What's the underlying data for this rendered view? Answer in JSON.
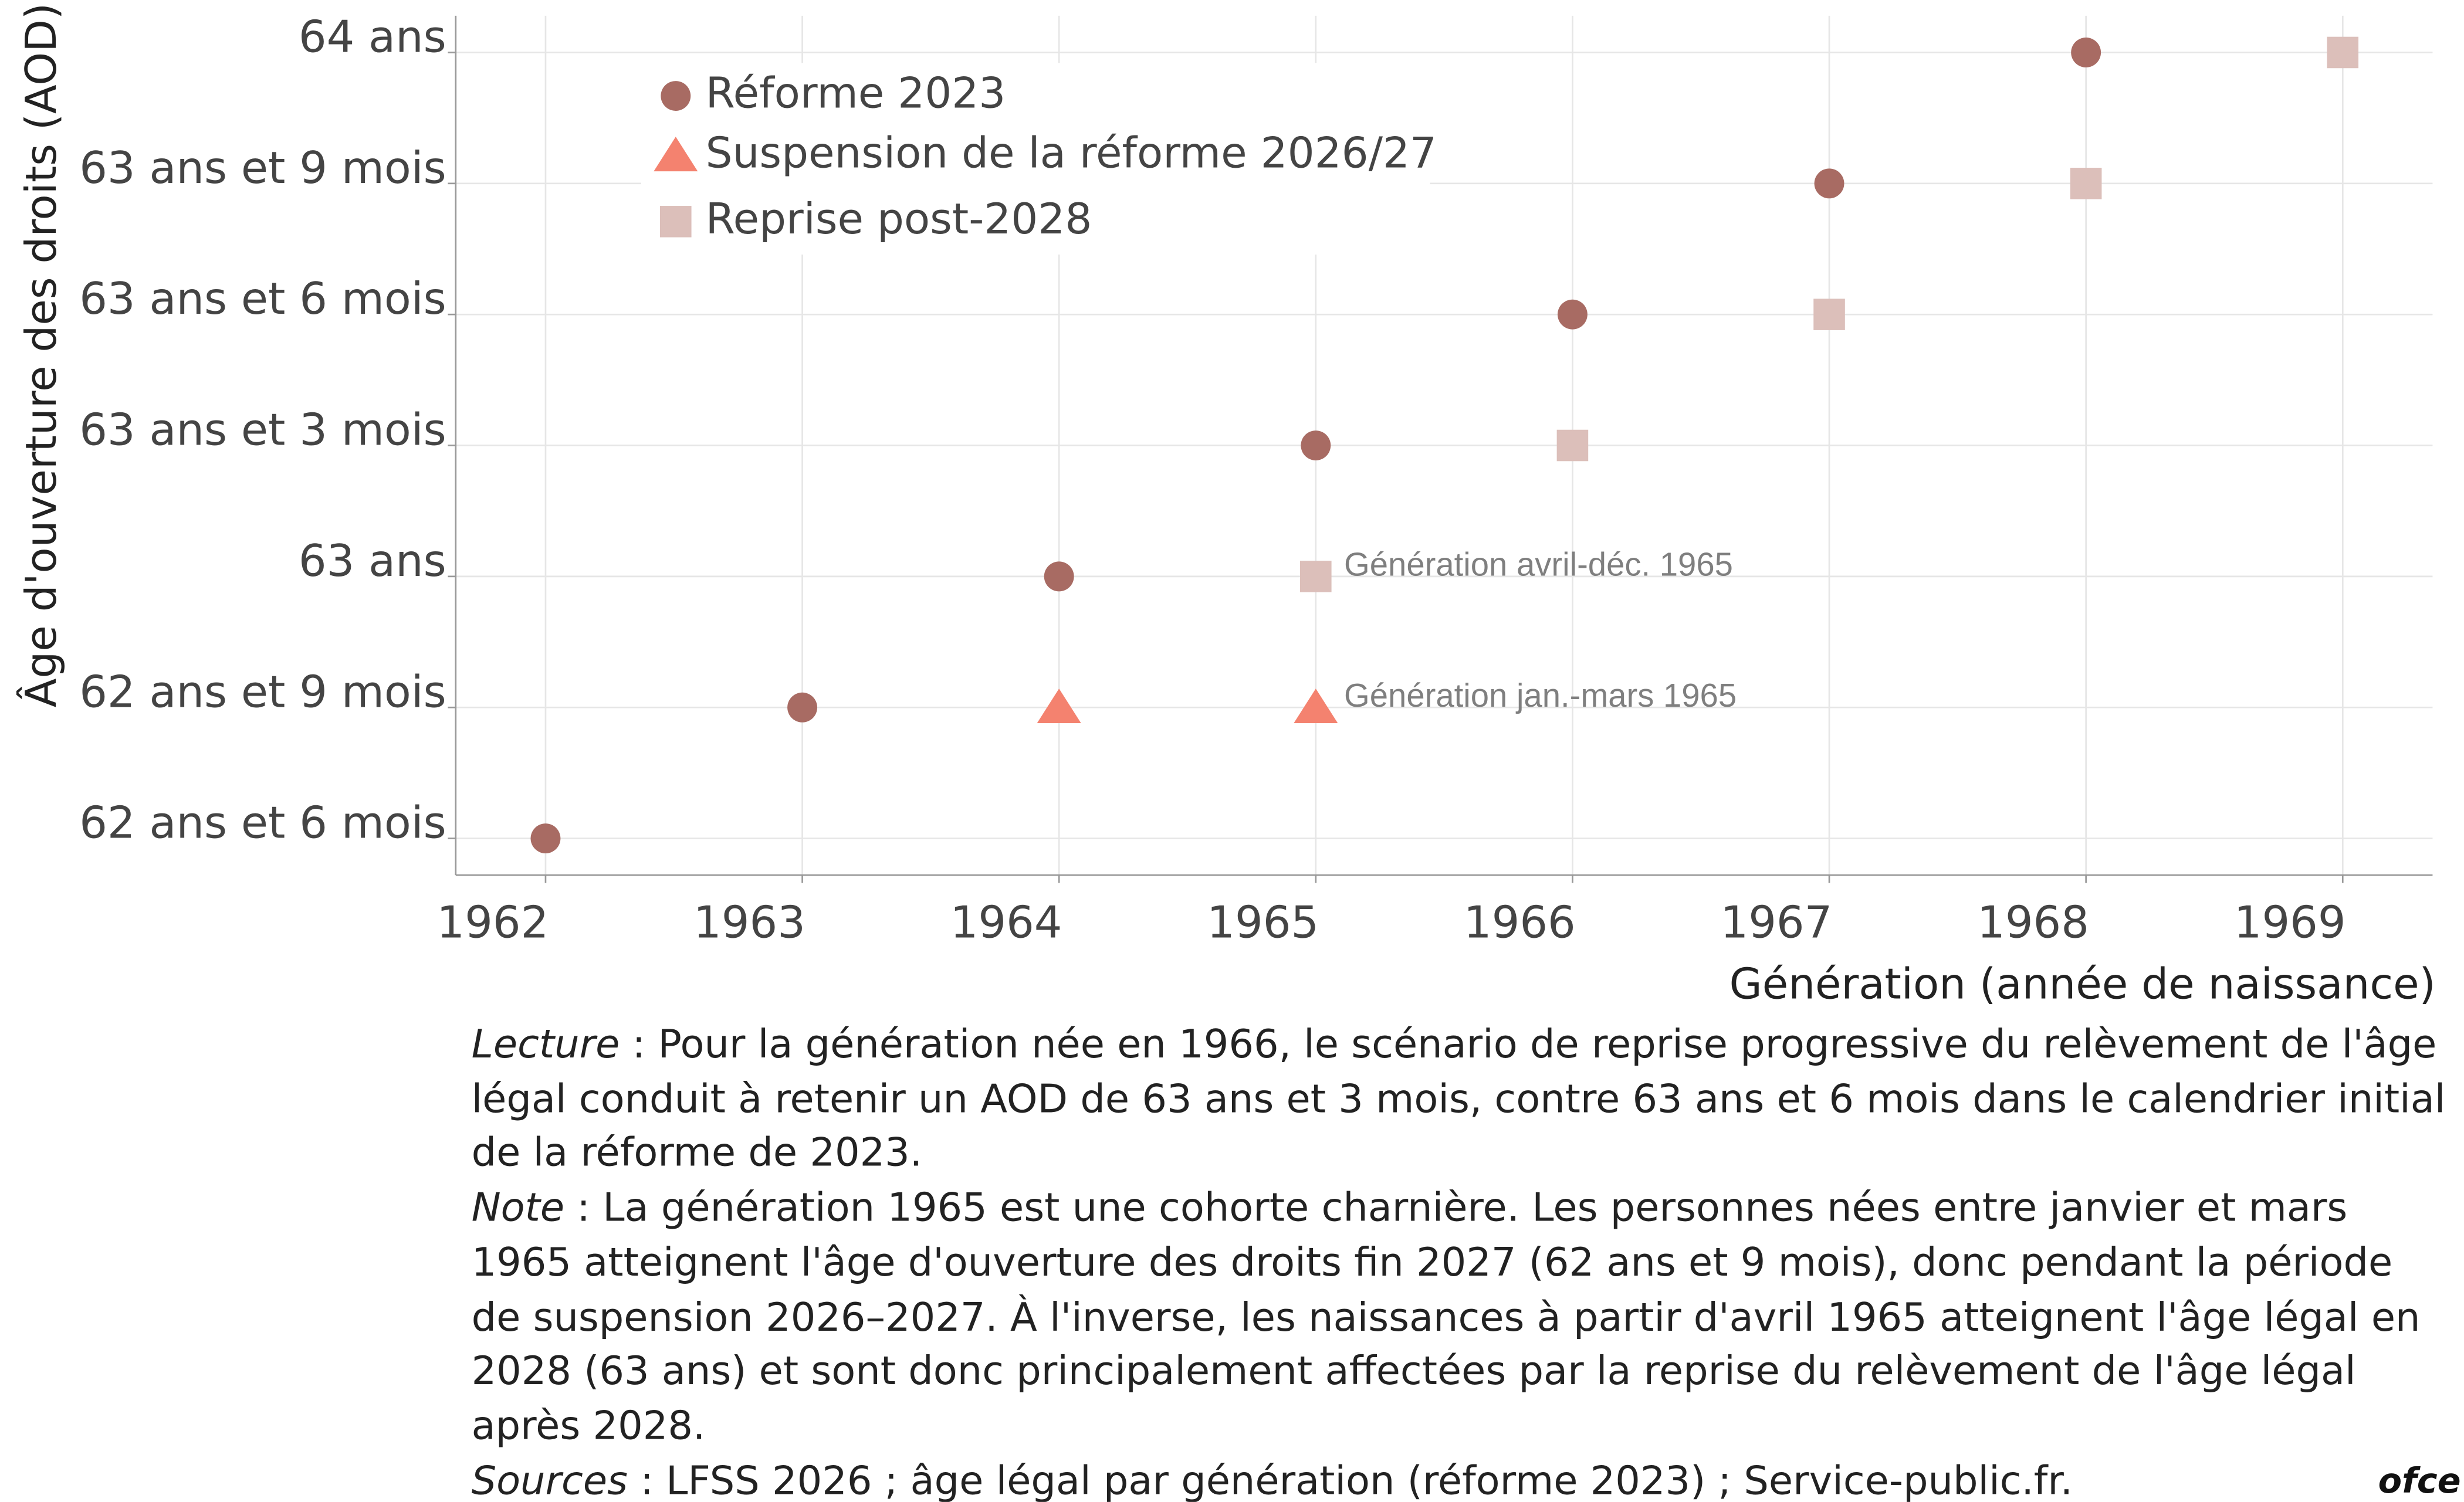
{
  "chart_data": {
    "type": "scatter",
    "x_label": "Génération (année de naissance)",
    "y_label": "Âge d'ouverture des droits (AOD)",
    "xlim": [
      1961.65,
      1969.35
    ],
    "xticks": [
      1962,
      1963,
      1964,
      1965,
      1966,
      1967,
      1968,
      1969
    ],
    "ylim": [
      62.43,
      64.07
    ],
    "yticks": [
      {
        "value": 62.5,
        "label": "62 ans et 6 mois"
      },
      {
        "value": 62.75,
        "label": "62 ans et 9 mois"
      },
      {
        "value": 63,
        "label": "63 ans"
      },
      {
        "value": 63.25,
        "label": "63 ans et 3 mois"
      },
      {
        "value": 63.5,
        "label": "63 ans et 6 mois"
      },
      {
        "value": 63.75,
        "label": "63 ans et 9 mois"
      },
      {
        "value": 64,
        "label": "64 ans"
      }
    ],
    "grid": true,
    "legend_position": "upper-left",
    "series": [
      {
        "name": "Réforme 2023",
        "color": "#a86b63",
        "marker": "circle",
        "x": [
          1962,
          1963,
          1964,
          1965,
          1966,
          1967,
          1968
        ],
        "values": [
          62.5,
          62.75,
          63,
          63.25,
          63.5,
          63.75,
          64
        ]
      },
      {
        "name": "Suspension de la réforme 2026/27",
        "color": "#f4826f",
        "marker": "triangle",
        "x": [
          1964,
          1965
        ],
        "values": [
          62.75,
          62.75
        ]
      },
      {
        "name": "Reprise post-2028",
        "color": "#dcbfba",
        "marker": "square",
        "x": [
          1965,
          1966,
          1967,
          1968,
          1969
        ],
        "values": [
          63,
          63.25,
          63.5,
          63.75,
          64
        ]
      }
    ],
    "annotations": [
      {
        "text": "Génération avril-déc. 1965",
        "x": 1965,
        "y": 63
      },
      {
        "text": "Génération jan.-mars 1965",
        "x": 1965,
        "y": 62.75
      }
    ]
  },
  "notes": [
    {
      "label": "Lecture",
      "text": " : Pour la génération née en 1966, le scénario de reprise progressive du relèvement de l'âge légal conduit à retenir un AOD de 63 ans et 3 mois, contre 63 ans et 6 mois dans le calendrier initial de la réforme de 2023."
    },
    {
      "label": "Note",
      "text": " : La génération 1965 est une cohorte charnière. Les personnes nées entre janvier et mars 1965 atteignent l'âge d'ouverture des droits fin 2027 (62 ans et 9 mois), donc pendant la période de suspension 2026–2027. À l'inverse, les naissances à partir d'avril 1965 atteignent l'âge légal en 2028 (63 ans) et sont donc principalement affectées par la reprise du relèvement de l'âge légal après 2028."
    },
    {
      "label": "Sources",
      "text": " : LFSS 2026 ; âge légal par génération (réforme 2023) ; Service-public.fr."
    }
  ],
  "logo": "ofce"
}
